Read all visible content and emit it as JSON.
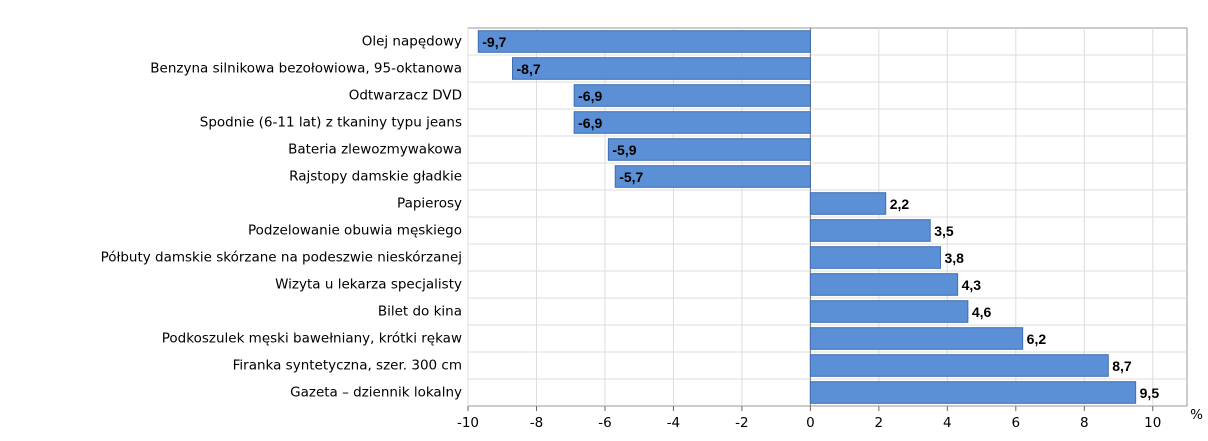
{
  "chart_data": {
    "type": "bar",
    "orientation": "horizontal",
    "categories": [
      "Olej napędowy",
      "Benzyna silnikowa bezołowiowa, 95-oktanowa",
      "Odtwarzacz DVD",
      "Spodnie (6-11 lat) z tkaniny typu jeans",
      "Bateria zlewozmywakowa",
      "Rajstopy damskie gładkie",
      "Papierosy",
      "Podzelowanie obuwia męskiego",
      "Półbuty damskie skórzane na podeszwie nieskórzanej",
      "Wizyta u lekarza specjalisty",
      "Bilet do kina",
      "Podkoszulek męski bawełniany, krótki rękaw",
      "Firanka syntetyczna, szer. 300 cm",
      "Gazeta – dziennik lokalny"
    ],
    "values": [
      -9.7,
      -8.7,
      -6.9,
      -6.9,
      -5.9,
      -5.7,
      2.2,
      3.5,
      3.8,
      4.3,
      4.6,
      6.2,
      8.7,
      9.5
    ],
    "value_labels": [
      "-9,7",
      "-8,7",
      "-6,9",
      "-6,9",
      "-5,9",
      "-5,7",
      "2,2",
      "3,5",
      "3,8",
      "4,3",
      "4,6",
      "6,2",
      "8,7",
      "9,5"
    ],
    "color": "#5b8fd6",
    "x_label": "%",
    "xlim": [
      -10,
      11
    ],
    "xticks": [
      -10,
      -8,
      -6,
      -4,
      -2,
      0,
      2,
      4,
      6,
      8,
      10
    ],
    "grid": true
  }
}
